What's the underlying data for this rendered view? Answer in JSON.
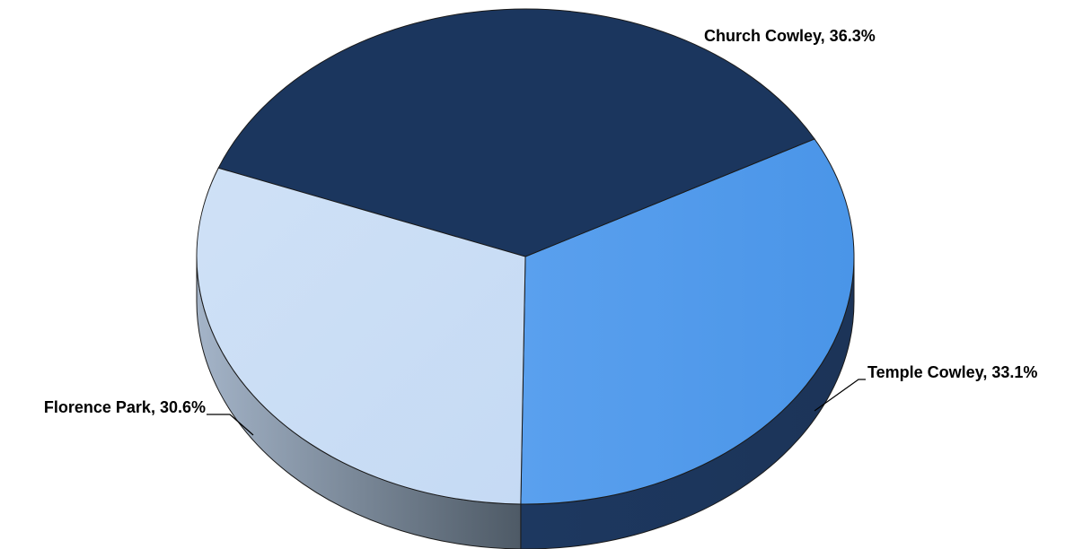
{
  "chart_data": {
    "type": "pie",
    "style": "3d",
    "title": "",
    "legend": "none",
    "slices": [
      {
        "label": "Church Cowley",
        "value": 36.3,
        "display": "Church Cowley, 36.3%",
        "color": "#1c365e",
        "side_color": "#1f3a60"
      },
      {
        "label": "Temple Cowley",
        "value": 33.1,
        "display": "Temple Cowley, 33.1%",
        "color": "#4f99ea",
        "side_color": "#1f3a60"
      },
      {
        "label": "Florence Park",
        "value": 30.6,
        "display": "Florence Park, 30.6%",
        "color": "#c9ddf5",
        "side_color": "#7d8fa6"
      }
    ]
  }
}
